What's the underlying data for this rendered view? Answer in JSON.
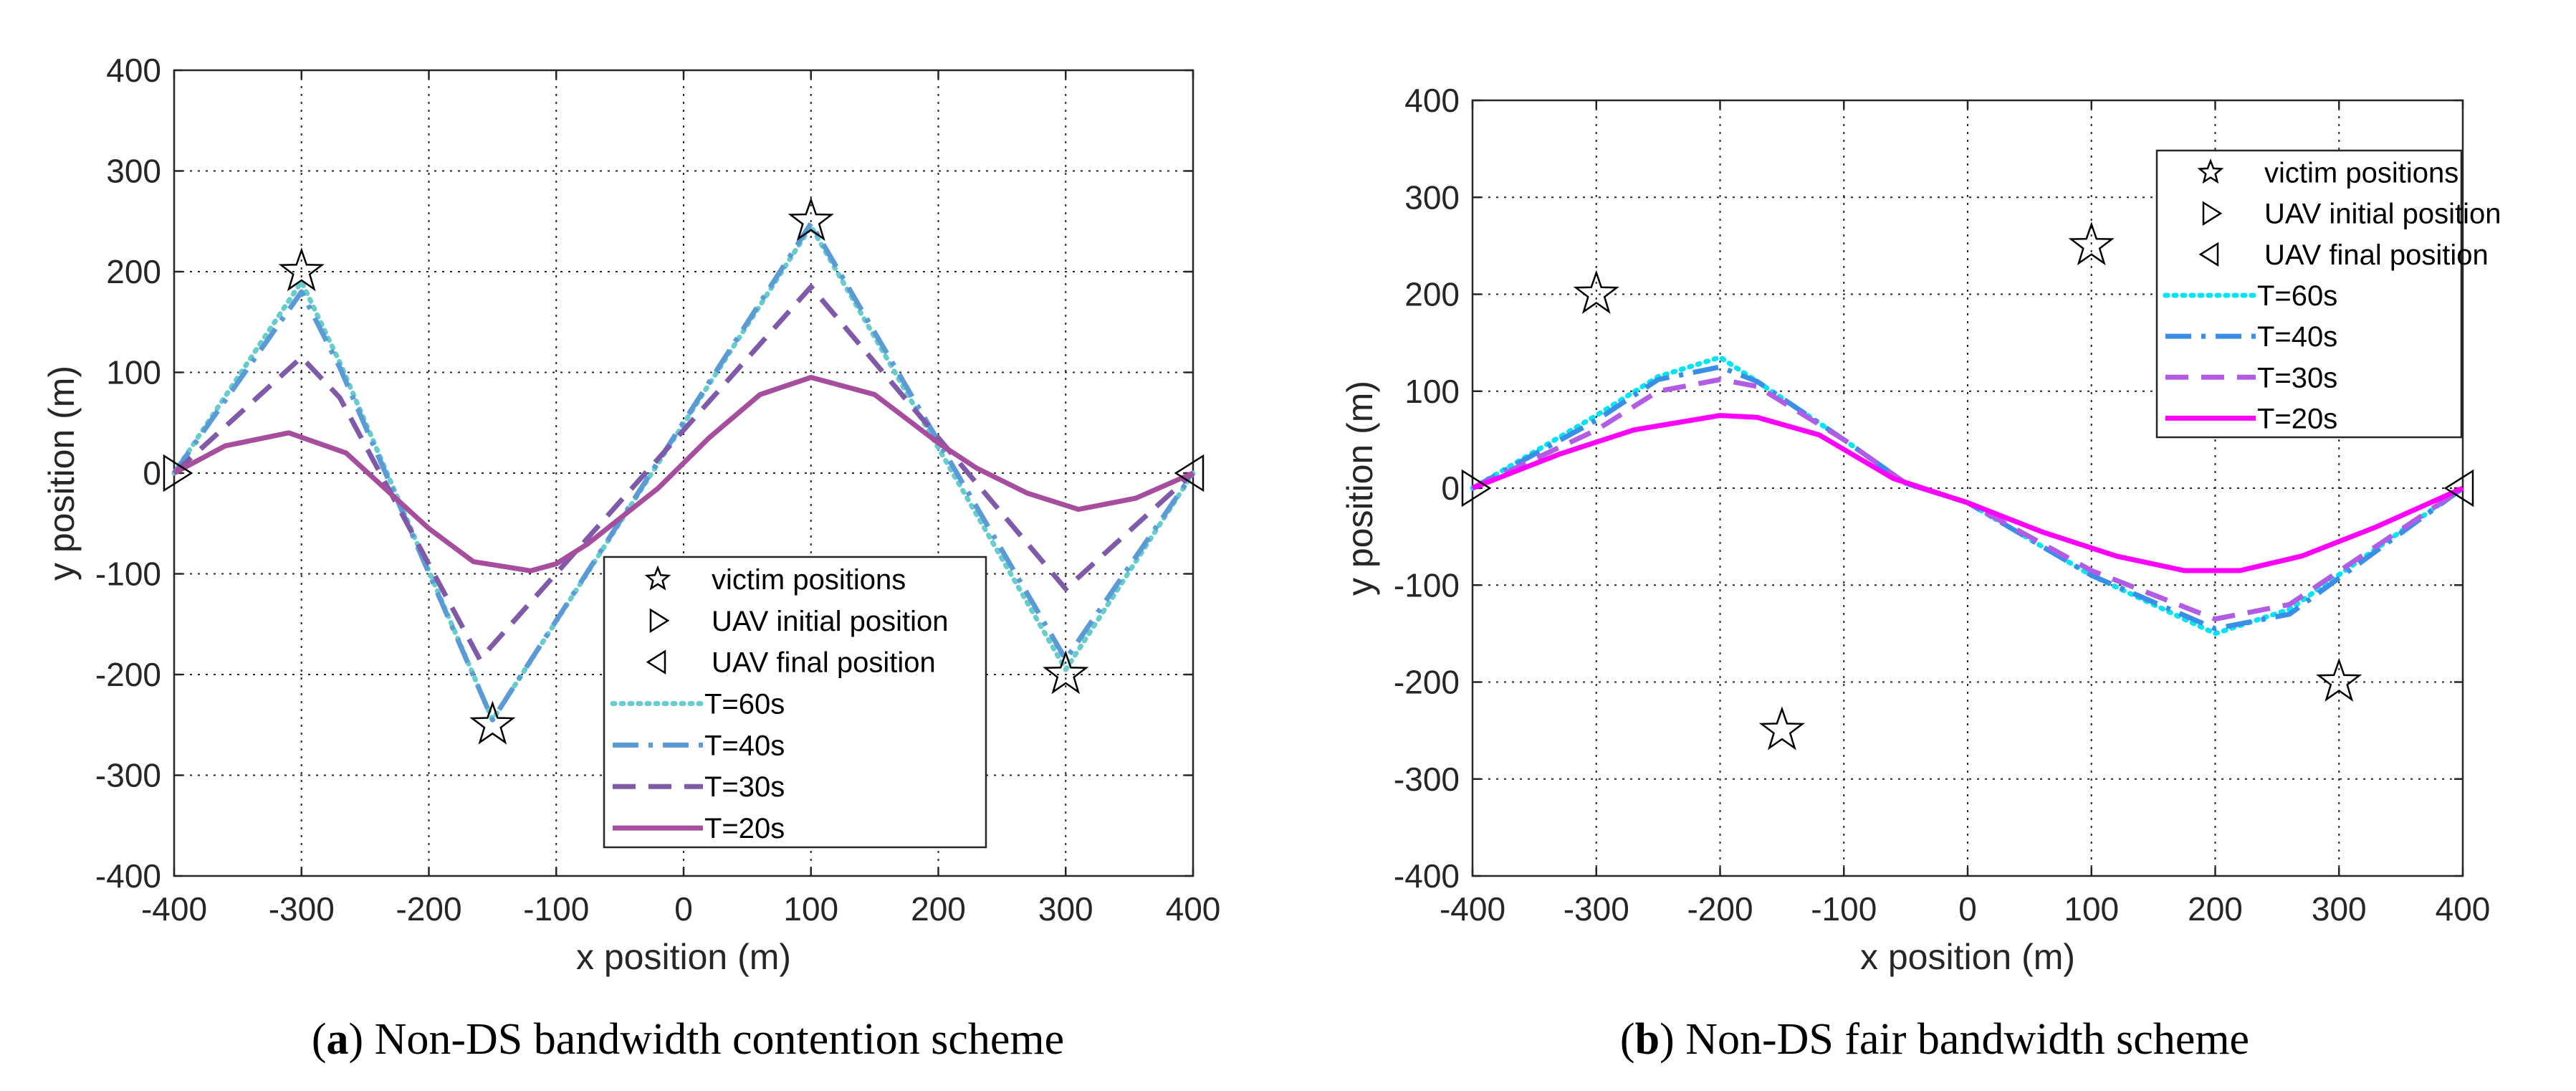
{
  "chart_data": [
    {
      "type": "line",
      "caption_letter": "a",
      "caption_text": " Non-DS bandwidth contention scheme",
      "xlabel": "x position (m)",
      "ylabel": "y position (m)",
      "xlim": [
        -400,
        400
      ],
      "ylim": [
        -400,
        400
      ],
      "xticks": [
        -400,
        -300,
        -200,
        -100,
        0,
        100,
        200,
        300,
        400
      ],
      "yticks": [
        -400,
        -300,
        -200,
        -100,
        0,
        100,
        200,
        300,
        400
      ],
      "grid": true,
      "legend_position": "bottom-right",
      "victims": [
        [
          -300,
          200
        ],
        [
          -150,
          -250
        ],
        [
          100,
          250
        ],
        [
          300,
          -200
        ]
      ],
      "uav_initial": [
        -400,
        0
      ],
      "uav_final": [
        400,
        0
      ],
      "legend": [
        "victim positions",
        "UAV initial position",
        "UAV final position",
        "T=60s",
        "T=40s",
        "T=30s",
        "T=20s"
      ],
      "series": [
        {
          "name": "T=60s",
          "color": "#66cccc",
          "style": "dotted",
          "x": [
            -400,
            -300,
            -270,
            -150,
            100,
            300,
            400
          ],
          "y": [
            0,
            190,
            110,
            -245,
            245,
            -195,
            0
          ]
        },
        {
          "name": "T=40s",
          "color": "#5b9bd5",
          "style": "dashdot",
          "x": [
            -400,
            -300,
            -270,
            -150,
            100,
            300,
            400
          ],
          "y": [
            0,
            180,
            105,
            -245,
            248,
            -185,
            0
          ]
        },
        {
          "name": "T=30s",
          "color": "#7e5aa8",
          "style": "dashed",
          "x": [
            -400,
            -300,
            -270,
            -160,
            100,
            300,
            400
          ],
          "y": [
            0,
            115,
            75,
            -185,
            185,
            -115,
            0
          ]
        },
        {
          "name": "T=20s",
          "color": "#a64d9e",
          "style": "solid",
          "x": [
            -400,
            -360,
            -310,
            -265,
            -200,
            -165,
            -120,
            -100,
            -75,
            -50,
            -20,
            20,
            60,
            100,
            150,
            200,
            230,
            270,
            310,
            355,
            400
          ],
          "y": [
            0,
            27,
            40,
            20,
            -55,
            -88,
            -97,
            -90,
            -70,
            -45,
            -15,
            35,
            78,
            95,
            78,
            30,
            5,
            -20,
            -36,
            -25,
            0
          ]
        }
      ]
    },
    {
      "type": "line",
      "caption_letter": "b",
      "caption_text": " Non-DS fair bandwidth scheme",
      "xlabel": "x position (m)",
      "ylabel": "y position (m)",
      "xlim": [
        -400,
        400
      ],
      "ylim": [
        -400,
        400
      ],
      "xticks": [
        -400,
        -300,
        -200,
        -100,
        0,
        100,
        200,
        300,
        400
      ],
      "yticks": [
        -400,
        -300,
        -200,
        -100,
        0,
        100,
        200,
        300,
        400
      ],
      "grid": true,
      "legend_position": "top-right",
      "victims": [
        [
          -300,
          200
        ],
        [
          -150,
          -250
        ],
        [
          100,
          250
        ],
        [
          300,
          -200
        ]
      ],
      "uav_initial": [
        -400,
        0
      ],
      "uav_final": [
        400,
        0
      ],
      "legend": [
        "victim positions",
        "UAV initial position",
        "UAV final position",
        "T=60s",
        "T=40s",
        "T=30s",
        "T=20s"
      ],
      "series": [
        {
          "name": "T=60s",
          "color": "#00e5f5",
          "style": "dotted",
          "x": [
            -400,
            -300,
            -250,
            -200,
            -170,
            -100,
            -50,
            0,
            100,
            200,
            260,
            400
          ],
          "y": [
            0,
            75,
            115,
            135,
            110,
            50,
            5,
            -15,
            -90,
            -150,
            -125,
            0
          ]
        },
        {
          "name": "T=40s",
          "color": "#3a8ee6",
          "style": "dashdot",
          "x": [
            -400,
            -300,
            -250,
            -200,
            -170,
            -100,
            -50,
            0,
            100,
            200,
            260,
            400
          ],
          "y": [
            0,
            70,
            112,
            125,
            110,
            50,
            5,
            -15,
            -90,
            -145,
            -130,
            0
          ]
        },
        {
          "name": "T=30s",
          "color": "#b25ce6",
          "style": "dashed",
          "x": [
            -400,
            -300,
            -250,
            -200,
            -170,
            -100,
            -50,
            0,
            100,
            200,
            260,
            400
          ],
          "y": [
            0,
            60,
            100,
            112,
            105,
            50,
            5,
            -15,
            -85,
            -135,
            -120,
            0
          ]
        },
        {
          "name": "T=20s",
          "color": "#ff00ff",
          "style": "solid",
          "x": [
            -400,
            -330,
            -270,
            -200,
            -170,
            -120,
            -60,
            0,
            60,
            120,
            175,
            220,
            270,
            330,
            400
          ],
          "y": [
            0,
            35,
            60,
            75,
            73,
            55,
            10,
            -15,
            -45,
            -70,
            -85,
            -85,
            -70,
            -40,
            0
          ]
        }
      ]
    }
  ]
}
